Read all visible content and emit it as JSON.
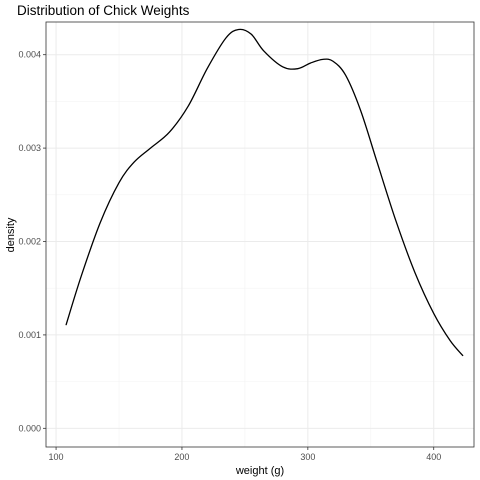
{
  "chart_data": {
    "type": "line",
    "title": "Distribution of Chick Weights",
    "xlabel": "weight (g)",
    "ylabel": "density",
    "xlim": [
      92,
      432
    ],
    "ylim": [
      -0.0002,
      0.00435
    ],
    "x_ticks": [
      100,
      200,
      300,
      400
    ],
    "x_tick_labels": [
      "100",
      "200",
      "300",
      "400"
    ],
    "y_ticks": [
      0.0,
      0.001,
      0.002,
      0.003,
      0.004
    ],
    "y_tick_labels": [
      "0.000",
      "0.001",
      "0.002",
      "0.003",
      "0.004"
    ],
    "grid": true,
    "legend": "none",
    "series": [
      {
        "color": "#000000",
        "x": [
          108,
          120,
          135,
          150,
          162,
          175,
          190,
          205,
          220,
          235,
          245,
          255,
          265,
          280,
          292,
          302,
          312,
          320,
          330,
          342,
          355,
          370,
          385,
          400,
          413,
          423
        ],
        "y": [
          0.00111,
          0.00163,
          0.0022,
          0.00263,
          0.00285,
          0.003,
          0.00317,
          0.00345,
          0.00385,
          0.00418,
          0.00427,
          0.00422,
          0.00404,
          0.00387,
          0.00385,
          0.00391,
          0.00395,
          0.00393,
          0.00378,
          0.0034,
          0.00285,
          0.00222,
          0.00167,
          0.00123,
          0.00094,
          0.00078
        ]
      }
    ]
  }
}
